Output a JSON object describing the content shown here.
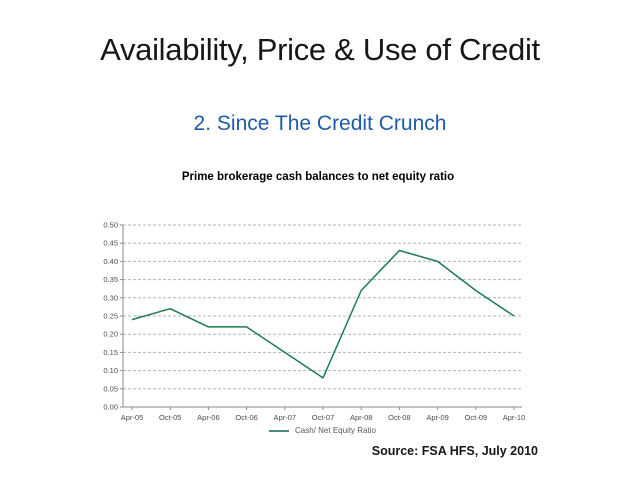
{
  "slide": {
    "title": "Availability, Price & Use of Credit",
    "subtitle": "2. Since The Credit Crunch",
    "subtitle_color": "#1F5CA8",
    "source": "Source: FSA HFS, July 2010"
  },
  "chart_data": {
    "type": "line",
    "title": "Prime brokerage cash balances to net equity ratio",
    "categories": [
      "Apr-05",
      "Oct-05",
      "Apr-06",
      "Oct-06",
      "Apr-07",
      "Oct-07",
      "Apr-08",
      "Oct-08",
      "Apr-09",
      "Oct-09",
      "Apr-10"
    ],
    "series": [
      {
        "name": "Cash/ Net Equity Ratio",
        "values": [
          0.24,
          0.27,
          0.22,
          0.22,
          0.15,
          0.08,
          0.32,
          0.43,
          0.4,
          0.32,
          0.25
        ],
        "color": "#1E7B52"
      }
    ],
    "ylim": [
      0,
      0.5
    ],
    "ytick_step": 0.05,
    "ytick_labels": [
      "0.00",
      "0.05",
      "0.10",
      "0.15",
      "0.20",
      "0.25",
      "0.30",
      "0.35",
      "0.40",
      "0.45",
      "0.50"
    ],
    "grid": "horizontal-dashed",
    "gridline_color": "#b3b3b3",
    "axis_color": "#8a8a8a",
    "tick_label_color": "#4d4d4d",
    "legend_position": "bottom",
    "legend_swatch_color": "#4E8C7E"
  }
}
